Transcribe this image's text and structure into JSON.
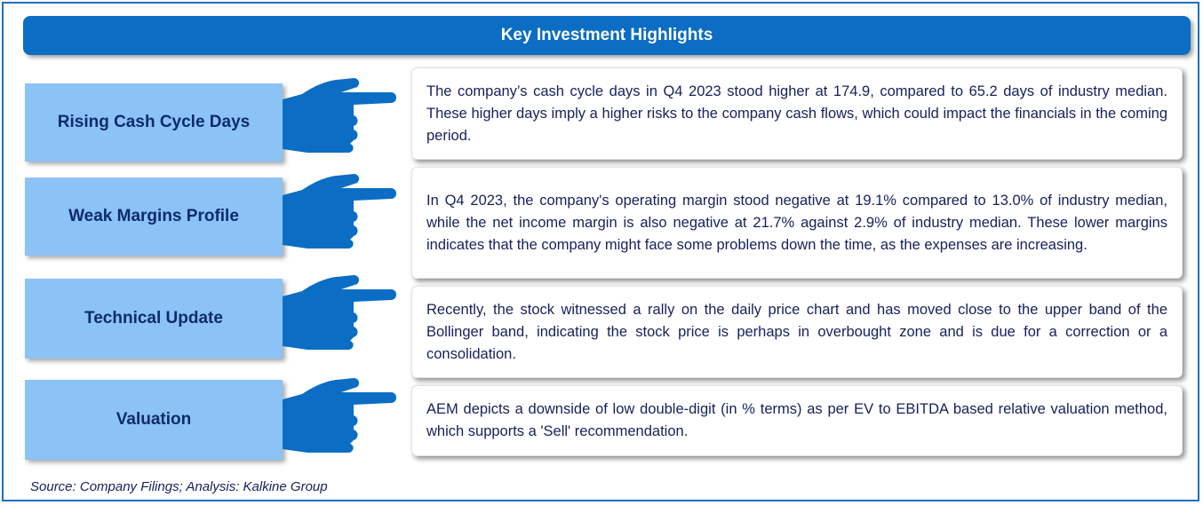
{
  "header": {
    "title": "Key Investment Highlights"
  },
  "highlights": [
    {
      "label": "Rising Cash Cycle Days",
      "text": "The company’s cash cycle days in Q4 2023 stood higher at 174.9, compared to 65.2 days of industry median. These higher days imply a higher risks to the company cash flows, which could impact the financials in the coming period."
    },
    {
      "label": "Weak Margins Profile",
      "text": "In Q4 2023, the company's operating margin stood negative at 19.1% compared to 13.0% of industry median, while the net income margin is also negative at 21.7% against 2.9% of industry median. These lower margins indicates that the company might face some problems down the time, as the expenses are increasing."
    },
    {
      "label": "Technical Update",
      "text": "Recently, the stock witnessed a rally on the daily price chart and has moved close to the upper band of the Bollinger band, indicating the stock price is perhaps in overbought zone and is due for a correction or a consolidation."
    },
    {
      "label": "Valuation",
      "text": "AEM depicts a downside of low double-digit (in % terms) as per EV to EBITDA based relative valuation method, which supports a 'Sell' recommendation."
    }
  ],
  "footer": {
    "source": "Source: Company Filings; Analysis: Kalkine Group"
  },
  "colors": {
    "banner": "#0b6dc4",
    "label_box": "#8cc3f6",
    "hand": "#0b6dc4",
    "text": "#16205a"
  },
  "icons": {
    "pointer": "pointing-hand-icon"
  }
}
